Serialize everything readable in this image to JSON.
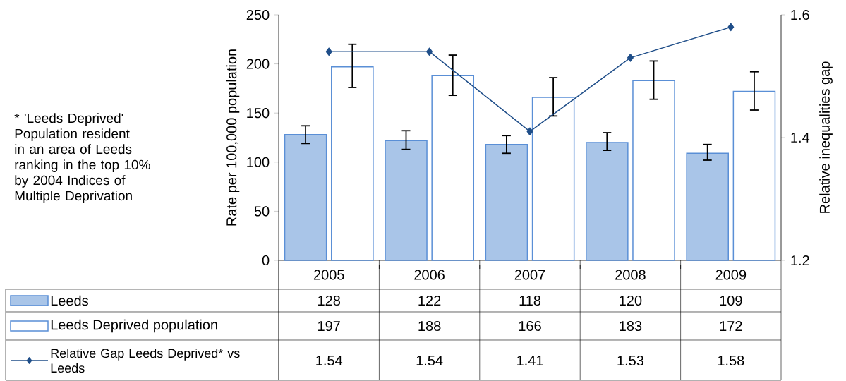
{
  "chart_data": {
    "type": "bar",
    "categories": [
      "2005",
      "2006",
      "2007",
      "2008",
      "2009"
    ],
    "series": [
      {
        "name": "Leeds",
        "color": "#a9c5e8",
        "values": [
          128,
          122,
          118,
          120,
          109
        ],
        "errors": [
          [
            119,
            137
          ],
          [
            113,
            132
          ],
          [
            109,
            127
          ],
          [
            112,
            130
          ],
          [
            102,
            118
          ]
        ]
      },
      {
        "name": "Leeds Deprived population",
        "type": "bar",
        "color": "#ffffff",
        "values": [
          197,
          188,
          166,
          183,
          172
        ],
        "errors": [
          [
            176,
            220
          ],
          [
            168,
            209
          ],
          [
            147,
            186
          ],
          [
            164,
            203
          ],
          [
            153,
            192
          ]
        ]
      },
      {
        "name": "Relative Gap Leeds Deprived* vs Leeds",
        "type": "line",
        "axis": "y2",
        "color": "#1f4e89",
        "values": [
          1.54,
          1.54,
          1.41,
          1.53,
          1.58
        ]
      }
    ],
    "ylabel": "Rate per 100,000 population",
    "y2label": "Relative inequalities gap",
    "ylim": [
      0,
      250
    ],
    "yticks": [
      0,
      50,
      100,
      150,
      200,
      250
    ],
    "y2lim": [
      1.2,
      1.6
    ],
    "y2ticks": [
      1.2,
      1.4,
      1.6
    ],
    "marker": "diamond",
    "legend": "bottom",
    "data_labels": true,
    "annotations": [
      "* 'Leeds Deprived' Population resident in an area of Leeds ranking in the top 10% by 2004 Indices of Multiple Deprivation"
    ]
  }
}
